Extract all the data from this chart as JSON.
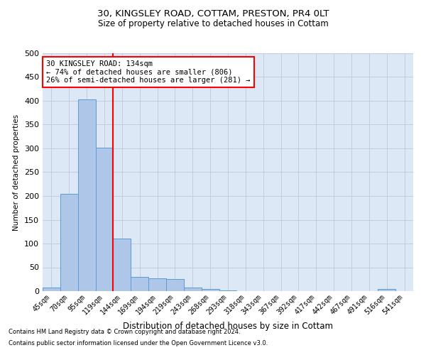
{
  "title1": "30, KINGSLEY ROAD, COTTAM, PRESTON, PR4 0LT",
  "title2": "Size of property relative to detached houses in Cottam",
  "xlabel": "Distribution of detached houses by size in Cottam",
  "ylabel": "Number of detached properties",
  "categories": [
    "45sqm",
    "70sqm",
    "95sqm",
    "119sqm",
    "144sqm",
    "169sqm",
    "194sqm",
    "219sqm",
    "243sqm",
    "268sqm",
    "293sqm",
    "318sqm",
    "343sqm",
    "367sqm",
    "392sqm",
    "417sqm",
    "442sqm",
    "467sqm",
    "491sqm",
    "516sqm",
    "541sqm"
  ],
  "values": [
    8,
    205,
    403,
    302,
    111,
    30,
    27,
    25,
    7,
    5,
    2,
    0,
    0,
    0,
    0,
    0,
    0,
    0,
    0,
    4,
    0
  ],
  "bar_color": "#aec6e8",
  "bar_edge_color": "#5b9bd5",
  "annotation_line1": "30 KINGSLEY ROAD: 134sqm",
  "annotation_line2": "← 74% of detached houses are smaller (806)",
  "annotation_line3": "26% of semi-detached houses are larger (281) →",
  "annotation_box_color": "white",
  "annotation_box_edge_color": "red",
  "vline_color": "red",
  "vline_x_index": 3.5,
  "ylim": [
    0,
    500
  ],
  "yticks": [
    0,
    50,
    100,
    150,
    200,
    250,
    300,
    350,
    400,
    450,
    500
  ],
  "grid_color": "#c0c8d8",
  "bg_color": "#dce8f5",
  "footer1": "Contains HM Land Registry data © Crown copyright and database right 2024.",
  "footer2": "Contains public sector information licensed under the Open Government Licence v3.0."
}
